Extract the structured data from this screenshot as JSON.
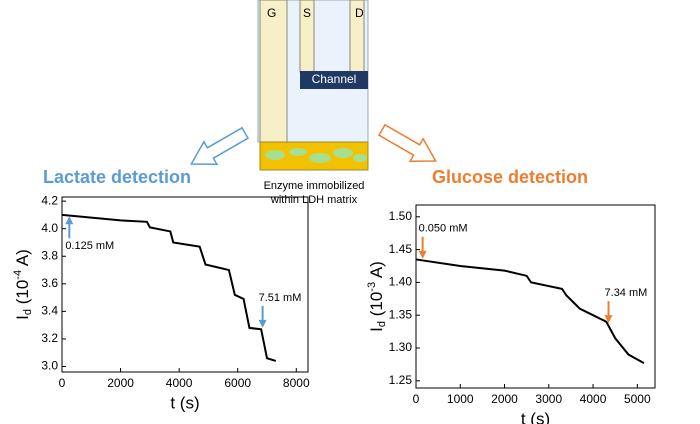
{
  "diagram": {
    "electrodes": [
      "G",
      "S",
      "D"
    ],
    "channel": "Channel",
    "matrix_label": [
      "Enzyme immobilized",
      "within LDH matrix"
    ]
  },
  "chart_data": [
    {
      "type": "line",
      "title": "Lactate detection",
      "title_color": "#5b9bd5",
      "arrow_color": "#5b9bd5",
      "x_label": "t (s)",
      "y_label": {
        "main": "I",
        "sub": "d",
        "pre": " (10",
        "sup": "-4",
        "post": " A)"
      },
      "x": [
        0,
        2000,
        2900,
        3000,
        3700,
        3800,
        4700,
        4900,
        5700,
        5900,
        6200,
        6400,
        6800,
        7000,
        7300
      ],
      "series": [
        {
          "color": "#000000",
          "values": [
            4.1,
            4.06,
            4.05,
            4.01,
            3.98,
            3.9,
            3.87,
            3.74,
            3.7,
            3.52,
            3.49,
            3.28,
            3.27,
            3.06,
            3.04
          ]
        }
      ],
      "xlim": [
        0,
        8400
      ],
      "xticks": [
        0,
        2000,
        4000,
        6000,
        8000
      ],
      "ylim": [
        2.96,
        4.23
      ],
      "yticks": [
        {
          "value": 3,
          "label": "3.0"
        },
        3.2,
        3.4,
        3.6,
        3.8,
        {
          "value": 4,
          "label": "4.0"
        },
        4.2
      ],
      "annotations": [
        {
          "text": "0.125 mM",
          "x": 250,
          "y": 4.09,
          "direction": "up"
        },
        {
          "text": "7.51 mM",
          "x": 6850,
          "y": 3.28,
          "direction": "down"
        }
      ]
    },
    {
      "type": "line",
      "title": "Glucose detection",
      "title_color": "#ed7d31",
      "arrow_color": "#ed7d31",
      "x_label": "t (s)",
      "y_label": {
        "main": "I",
        "sub": "d",
        "pre": " (10",
        "sup": "-3",
        "post": " A)"
      },
      "x": [
        0,
        1000,
        2000,
        2500,
        2600,
        3300,
        3400,
        3700,
        4000,
        4300,
        4500,
        4800,
        5150
      ],
      "series": [
        {
          "color": "#000000",
          "values": [
            1.435,
            1.425,
            1.418,
            1.41,
            1.4,
            1.39,
            1.38,
            1.36,
            1.35,
            1.34,
            1.315,
            1.29,
            1.277
          ]
        }
      ],
      "xlim": [
        0,
        5400
      ],
      "xticks": [
        0,
        1000,
        2000,
        3000,
        4000,
        5000
      ],
      "ylim": [
        1.239,
        1.518
      ],
      "yticks": [
        1.25,
        {
          "value": 1.3,
          "label": "1.30"
        },
        1.35,
        {
          "value": 1.4,
          "label": "1.40"
        },
        1.45,
        {
          "value": 1.5,
          "label": "1.50"
        }
      ],
      "annotations": [
        {
          "text": "0.050 mM",
          "x": 150,
          "y": 1.436,
          "direction": "down"
        },
        {
          "text": "7.34 mM",
          "x": 4350,
          "y": 1.338,
          "direction": "down"
        }
      ]
    }
  ]
}
